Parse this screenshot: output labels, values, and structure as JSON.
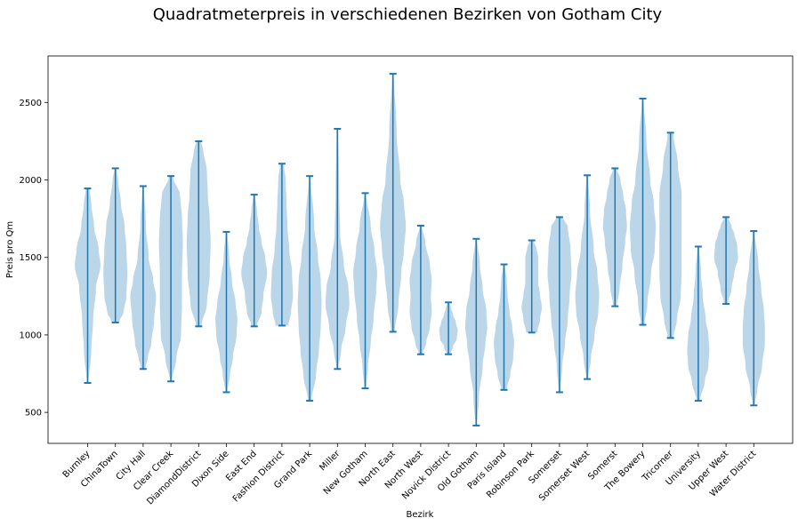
{
  "chart_data": {
    "type": "violin",
    "title": "Quadratmeterpreis in verschiedenen Bezirken von Gotham City",
    "xlabel": "Bezirk",
    "ylabel": "Preis pro Qm",
    "ylim": [
      300,
      2800
    ],
    "yticks": [
      500,
      1000,
      1500,
      2000,
      2500
    ],
    "grid": false,
    "colors": {
      "body": "#1f77b4",
      "body_alpha": 0.3,
      "line": "#1f77b4"
    },
    "categories": [
      "Burnley",
      "ChinaTown",
      "City Hall",
      "Clear Creek",
      "DiamondDistrict",
      "Dixon Side",
      "East End",
      "Fashion District",
      "Grand Park",
      "Miller",
      "New Gotham",
      "North East",
      "North West",
      "Novick District",
      "Old Gotham",
      "Paris Island",
      "Robinson Park",
      "Somerset",
      "Somerset West",
      "Somerst",
      "The Bowery",
      "Tricorner",
      "University",
      "Upper West",
      "Water District"
    ],
    "series": [
      {
        "category": "Burnley",
        "min": 690,
        "max": 1945,
        "profile": [
          [
            690,
            1
          ],
          [
            900,
            4
          ],
          [
            1100,
            6
          ],
          [
            1300,
            9
          ],
          [
            1450,
            14
          ],
          [
            1550,
            12
          ],
          [
            1700,
            7
          ],
          [
            1850,
            4
          ],
          [
            1945,
            2
          ]
        ]
      },
      {
        "category": "ChinaTown",
        "min": 1080,
        "max": 2075,
        "profile": [
          [
            1080,
            4
          ],
          [
            1150,
            9
          ],
          [
            1250,
            12
          ],
          [
            1400,
            13
          ],
          [
            1550,
            12
          ],
          [
            1700,
            10
          ],
          [
            1850,
            6
          ],
          [
            2000,
            3
          ],
          [
            2075,
            1
          ]
        ]
      },
      {
        "category": "City Hall",
        "min": 780,
        "max": 1960,
        "profile": [
          [
            780,
            2
          ],
          [
            850,
            5
          ],
          [
            950,
            9
          ],
          [
            1100,
            12
          ],
          [
            1250,
            14
          ],
          [
            1350,
            11
          ],
          [
            1500,
            6
          ],
          [
            1700,
            3
          ],
          [
            1960,
            1
          ]
        ]
      },
      {
        "category": "Clear Creek",
        "min": 700,
        "max": 2025,
        "profile": [
          [
            700,
            1
          ],
          [
            850,
            6
          ],
          [
            1000,
            11
          ],
          [
            1200,
            12
          ],
          [
            1400,
            12
          ],
          [
            1600,
            13
          ],
          [
            1750,
            12
          ],
          [
            1900,
            10
          ],
          [
            2025,
            2
          ]
        ]
      },
      {
        "category": "DiamondDistrict",
        "min": 1055,
        "max": 2250,
        "profile": [
          [
            1055,
            3
          ],
          [
            1200,
            9
          ],
          [
            1400,
            12
          ],
          [
            1600,
            13
          ],
          [
            1750,
            12
          ],
          [
            1900,
            10
          ],
          [
            2050,
            9
          ],
          [
            2200,
            5
          ],
          [
            2250,
            2
          ]
        ]
      },
      {
        "category": "Dixon Side",
        "min": 630,
        "max": 1665,
        "profile": [
          [
            630,
            1
          ],
          [
            750,
            4
          ],
          [
            850,
            7
          ],
          [
            1000,
            11
          ],
          [
            1100,
            12
          ],
          [
            1200,
            10
          ],
          [
            1350,
            6
          ],
          [
            1500,
            3
          ],
          [
            1665,
            1
          ]
        ]
      },
      {
        "category": "East End",
        "min": 1055,
        "max": 1905,
        "profile": [
          [
            1055,
            3
          ],
          [
            1150,
            8
          ],
          [
            1250,
            10
          ],
          [
            1400,
            14
          ],
          [
            1500,
            12
          ],
          [
            1600,
            8
          ],
          [
            1700,
            5
          ],
          [
            1800,
            3
          ],
          [
            1905,
            1
          ]
        ]
      },
      {
        "category": "Fashion District",
        "min": 1060,
        "max": 2105,
        "profile": [
          [
            1060,
            7
          ],
          [
            1150,
            10
          ],
          [
            1250,
            12
          ],
          [
            1400,
            11
          ],
          [
            1550,
            8
          ],
          [
            1700,
            6
          ],
          [
            1850,
            5
          ],
          [
            2000,
            4
          ],
          [
            2105,
            2
          ]
        ]
      },
      {
        "category": "Grand Park",
        "min": 575,
        "max": 2025,
        "profile": [
          [
            575,
            2
          ],
          [
            750,
            7
          ],
          [
            900,
            10
          ],
          [
            1050,
            12
          ],
          [
            1200,
            13
          ],
          [
            1350,
            12
          ],
          [
            1500,
            9
          ],
          [
            1700,
            5
          ],
          [
            2025,
            1
          ]
        ]
      },
      {
        "category": "Miller",
        "min": 780,
        "max": 2330,
        "profile": [
          [
            780,
            1
          ],
          [
            900,
            4
          ],
          [
            1050,
            9
          ],
          [
            1200,
            13
          ],
          [
            1300,
            12
          ],
          [
            1450,
            7
          ],
          [
            1650,
            3
          ],
          [
            1900,
            2
          ],
          [
            2330,
            1
          ]
        ]
      },
      {
        "category": "New Gotham",
        "min": 655,
        "max": 1915,
        "profile": [
          [
            655,
            1
          ],
          [
            800,
            3
          ],
          [
            950,
            6
          ],
          [
            1100,
            9
          ],
          [
            1300,
            12
          ],
          [
            1400,
            13
          ],
          [
            1550,
            10
          ],
          [
            1700,
            6
          ],
          [
            1915,
            1
          ]
        ]
      },
      {
        "category": "North East",
        "min": 1020,
        "max": 2685,
        "profile": [
          [
            1020,
            2
          ],
          [
            1200,
            6
          ],
          [
            1400,
            9
          ],
          [
            1550,
            12
          ],
          [
            1700,
            14
          ],
          [
            1850,
            12
          ],
          [
            2000,
            8
          ],
          [
            2300,
            4
          ],
          [
            2685,
            1
          ]
        ]
      },
      {
        "category": "North West",
        "min": 875,
        "max": 1705,
        "profile": [
          [
            875,
            2
          ],
          [
            950,
            6
          ],
          [
            1050,
            10
          ],
          [
            1150,
            12
          ],
          [
            1250,
            11
          ],
          [
            1350,
            12
          ],
          [
            1450,
            10
          ],
          [
            1600,
            5
          ],
          [
            1705,
            1
          ]
        ]
      },
      {
        "category": "Novick District",
        "min": 875,
        "max": 1210,
        "profile": [
          [
            875,
            2
          ],
          [
            925,
            5
          ],
          [
            975,
            9
          ],
          [
            1030,
            10
          ],
          [
            1080,
            8
          ],
          [
            1130,
            5
          ],
          [
            1170,
            3
          ],
          [
            1210,
            1
          ]
        ]
      },
      {
        "category": "Old Gotham",
        "min": 415,
        "max": 1620,
        "profile": [
          [
            415,
            1
          ],
          [
            600,
            3
          ],
          [
            800,
            7
          ],
          [
            950,
            10
          ],
          [
            1050,
            12
          ],
          [
            1150,
            11
          ],
          [
            1300,
            7
          ],
          [
            1450,
            4
          ],
          [
            1620,
            1
          ]
        ]
      },
      {
        "category": "Paris Island",
        "min": 645,
        "max": 1455,
        "profile": [
          [
            645,
            3
          ],
          [
            750,
            7
          ],
          [
            850,
            10
          ],
          [
            950,
            11
          ],
          [
            1050,
            9
          ],
          [
            1150,
            6
          ],
          [
            1250,
            4
          ],
          [
            1350,
            3
          ],
          [
            1455,
            1
          ]
        ]
      },
      {
        "category": "Robinson Park",
        "min": 1015,
        "max": 1610,
        "profile": [
          [
            1015,
            6
          ],
          [
            1100,
            9
          ],
          [
            1180,
            11
          ],
          [
            1260,
            9
          ],
          [
            1340,
            7
          ],
          [
            1420,
            7
          ],
          [
            1500,
            7
          ],
          [
            1560,
            5
          ],
          [
            1610,
            2
          ]
        ]
      },
      {
        "category": "Somerset",
        "min": 630,
        "max": 1760,
        "profile": [
          [
            630,
            1
          ],
          [
            800,
            3
          ],
          [
            950,
            6
          ],
          [
            1100,
            9
          ],
          [
            1250,
            11
          ],
          [
            1400,
            13
          ],
          [
            1550,
            12
          ],
          [
            1700,
            9
          ],
          [
            1760,
            3
          ]
        ]
      },
      {
        "category": "Somerset West",
        "min": 715,
        "max": 2030,
        "profile": [
          [
            715,
            1
          ],
          [
            850,
            4
          ],
          [
            1000,
            8
          ],
          [
            1150,
            12
          ],
          [
            1250,
            13
          ],
          [
            1400,
            11
          ],
          [
            1550,
            7
          ],
          [
            1800,
            3
          ],
          [
            2030,
            1
          ]
        ]
      },
      {
        "category": "Somerst",
        "min": 1185,
        "max": 2075,
        "profile": [
          [
            1185,
            2
          ],
          [
            1300,
            5
          ],
          [
            1450,
            8
          ],
          [
            1600,
            11
          ],
          [
            1700,
            13
          ],
          [
            1800,
            12
          ],
          [
            1900,
            9
          ],
          [
            2000,
            6
          ],
          [
            2075,
            2
          ]
        ]
      },
      {
        "category": "The Bowery",
        "min": 1065,
        "max": 2525,
        "profile": [
          [
            1065,
            2
          ],
          [
            1200,
            5
          ],
          [
            1400,
            9
          ],
          [
            1550,
            13
          ],
          [
            1700,
            14
          ],
          [
            1850,
            12
          ],
          [
            2000,
            8
          ],
          [
            2250,
            4
          ],
          [
            2525,
            1
          ]
        ]
      },
      {
        "category": "Tricorner",
        "min": 980,
        "max": 2305,
        "profile": [
          [
            980,
            3
          ],
          [
            1100,
            7
          ],
          [
            1250,
            11
          ],
          [
            1400,
            12
          ],
          [
            1550,
            12
          ],
          [
            1700,
            12
          ],
          [
            1900,
            12
          ],
          [
            2100,
            8
          ],
          [
            2305,
            3
          ]
        ]
      },
      {
        "category": "University",
        "min": 575,
        "max": 1570,
        "profile": [
          [
            575,
            2
          ],
          [
            700,
            7
          ],
          [
            800,
            11
          ],
          [
            900,
            12
          ],
          [
            1000,
            11
          ],
          [
            1100,
            8
          ],
          [
            1250,
            5
          ],
          [
            1400,
            3
          ],
          [
            1570,
            1
          ]
        ]
      },
      {
        "category": "Upper West",
        "min": 1200,
        "max": 1760,
        "profile": [
          [
            1200,
            2
          ],
          [
            1300,
            6
          ],
          [
            1400,
            9
          ],
          [
            1500,
            13
          ],
          [
            1580,
            12
          ],
          [
            1650,
            9
          ],
          [
            1700,
            6
          ],
          [
            1760,
            2
          ]
        ]
      },
      {
        "category": "Water District",
        "min": 545,
        "max": 1670,
        "profile": [
          [
            545,
            1
          ],
          [
            650,
            4
          ],
          [
            800,
            9
          ],
          [
            950,
            12
          ],
          [
            1050,
            12
          ],
          [
            1150,
            11
          ],
          [
            1300,
            8
          ],
          [
            1450,
            5
          ],
          [
            1670,
            1
          ]
        ]
      }
    ]
  }
}
